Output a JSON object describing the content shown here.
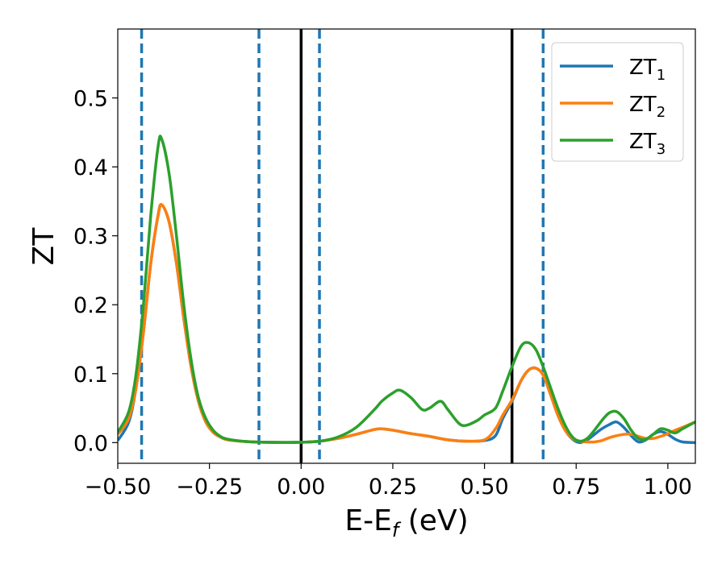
{
  "chart_data": {
    "type": "line",
    "xlabel": "E-E",
    "xlabel_sub": "f",
    "xlabel_unit": " (eV)",
    "ylabel": "ZT",
    "xlim": [
      -0.5,
      1.075
    ],
    "ylim": [
      -0.03,
      0.6
    ],
    "xticks": [
      -0.5,
      -0.25,
      0.0,
      0.25,
      0.5,
      0.75,
      1.0
    ],
    "xtick_labels": [
      "−0.50",
      "−0.25",
      "0.00",
      "0.25",
      "0.50",
      "0.75",
      "1.00"
    ],
    "yticks": [
      0.0,
      0.1,
      0.2,
      0.3,
      0.4,
      0.5
    ],
    "ytick_labels": [
      "0.0",
      "0.1",
      "0.2",
      "0.3",
      "0.4",
      "0.5"
    ],
    "legend_placement": "top-right",
    "grid": false,
    "vlines_solid": [
      0.0,
      0.575
    ],
    "vlines_dashed": [
      -0.435,
      -0.115,
      0.05,
      0.66
    ],
    "vline_solid_color": "#000000",
    "vline_dashed_color": "#1f77b4",
    "series": [
      {
        "name": "ZT",
        "name_sub": "1",
        "color": "#1f77b4",
        "x": [
          -0.5,
          -0.47,
          -0.45,
          -0.43,
          -0.41,
          -0.39,
          -0.38,
          -0.36,
          -0.34,
          -0.32,
          -0.3,
          -0.28,
          -0.26,
          -0.24,
          -0.22,
          -0.2,
          -0.15,
          -0.1,
          -0.05,
          0.0,
          0.05,
          0.1,
          0.15,
          0.2,
          0.22,
          0.25,
          0.3,
          0.35,
          0.4,
          0.45,
          0.5,
          0.53,
          0.55,
          0.575,
          0.6,
          0.62,
          0.64,
          0.66,
          0.68,
          0.7,
          0.72,
          0.74,
          0.76,
          0.78,
          0.8,
          0.82,
          0.84,
          0.86,
          0.88,
          0.9,
          0.92,
          0.94,
          0.96,
          0.98,
          1.0,
          1.02,
          1.04,
          1.075
        ],
        "y": [
          0.003,
          0.03,
          0.08,
          0.16,
          0.26,
          0.33,
          0.345,
          0.32,
          0.26,
          0.18,
          0.11,
          0.06,
          0.03,
          0.015,
          0.008,
          0.004,
          0.0015,
          0.0005,
          0.0002,
          0.0005,
          0.002,
          0.006,
          0.012,
          0.019,
          0.02,
          0.018,
          0.013,
          0.009,
          0.004,
          0.002,
          0.003,
          0.01,
          0.035,
          0.06,
          0.09,
          0.105,
          0.108,
          0.098,
          0.07,
          0.04,
          0.018,
          0.005,
          0.0,
          0.004,
          0.012,
          0.02,
          0.026,
          0.03,
          0.022,
          0.01,
          0.001,
          0.004,
          0.012,
          0.016,
          0.012,
          0.005,
          0.001,
          0.0
        ]
      },
      {
        "name": "ZT",
        "name_sub": "2",
        "color": "#ff7f0e",
        "x": [
          -0.5,
          -0.47,
          -0.45,
          -0.43,
          -0.41,
          -0.39,
          -0.38,
          -0.36,
          -0.34,
          -0.32,
          -0.3,
          -0.28,
          -0.26,
          -0.24,
          -0.22,
          -0.2,
          -0.15,
          -0.1,
          -0.05,
          0.0,
          0.05,
          0.1,
          0.15,
          0.2,
          0.22,
          0.25,
          0.3,
          0.35,
          0.4,
          0.45,
          0.5,
          0.53,
          0.55,
          0.575,
          0.6,
          0.62,
          0.64,
          0.66,
          0.68,
          0.7,
          0.72,
          0.74,
          0.76,
          0.78,
          0.8,
          0.82,
          0.84,
          0.86,
          0.88,
          0.9,
          0.92,
          0.94,
          0.96,
          0.98,
          1.0,
          1.02,
          1.04,
          1.075
        ],
        "y": [
          0.012,
          0.035,
          0.08,
          0.16,
          0.26,
          0.33,
          0.345,
          0.32,
          0.26,
          0.18,
          0.11,
          0.06,
          0.03,
          0.015,
          0.008,
          0.004,
          0.0015,
          0.0005,
          0.0002,
          0.0005,
          0.002,
          0.006,
          0.012,
          0.019,
          0.02,
          0.018,
          0.013,
          0.009,
          0.004,
          0.002,
          0.004,
          0.02,
          0.04,
          0.062,
          0.09,
          0.105,
          0.108,
          0.098,
          0.07,
          0.04,
          0.018,
          0.006,
          0.002,
          0.001,
          0.001,
          0.003,
          0.007,
          0.01,
          0.012,
          0.012,
          0.009,
          0.006,
          0.006,
          0.009,
          0.013,
          0.018,
          0.022,
          0.03
        ]
      },
      {
        "name": "ZT",
        "name_sub": "3",
        "color": "#2ca02c",
        "x": [
          -0.5,
          -0.47,
          -0.45,
          -0.43,
          -0.41,
          -0.39,
          -0.38,
          -0.36,
          -0.34,
          -0.32,
          -0.3,
          -0.28,
          -0.26,
          -0.24,
          -0.22,
          -0.2,
          -0.15,
          -0.1,
          -0.05,
          0.0,
          0.05,
          0.1,
          0.15,
          0.2,
          0.22,
          0.25,
          0.27,
          0.3,
          0.33,
          0.35,
          0.38,
          0.4,
          0.43,
          0.45,
          0.48,
          0.5,
          0.53,
          0.55,
          0.575,
          0.6,
          0.62,
          0.64,
          0.66,
          0.68,
          0.7,
          0.72,
          0.74,
          0.76,
          0.78,
          0.8,
          0.82,
          0.84,
          0.86,
          0.88,
          0.9,
          0.92,
          0.94,
          0.96,
          0.98,
          1.0,
          1.02,
          1.04,
          1.075
        ],
        "y": [
          0.015,
          0.045,
          0.1,
          0.2,
          0.33,
          0.43,
          0.44,
          0.39,
          0.3,
          0.2,
          0.12,
          0.065,
          0.035,
          0.018,
          0.009,
          0.005,
          0.0015,
          0.0005,
          0.0002,
          0.0005,
          0.002,
          0.008,
          0.022,
          0.048,
          0.06,
          0.072,
          0.076,
          0.065,
          0.048,
          0.05,
          0.06,
          0.048,
          0.028,
          0.025,
          0.032,
          0.04,
          0.05,
          0.075,
          0.11,
          0.14,
          0.145,
          0.135,
          0.11,
          0.08,
          0.05,
          0.025,
          0.008,
          0.002,
          0.006,
          0.018,
          0.032,
          0.043,
          0.045,
          0.035,
          0.018,
          0.006,
          0.005,
          0.012,
          0.02,
          0.018,
          0.014,
          0.02,
          0.03
        ]
      }
    ]
  }
}
